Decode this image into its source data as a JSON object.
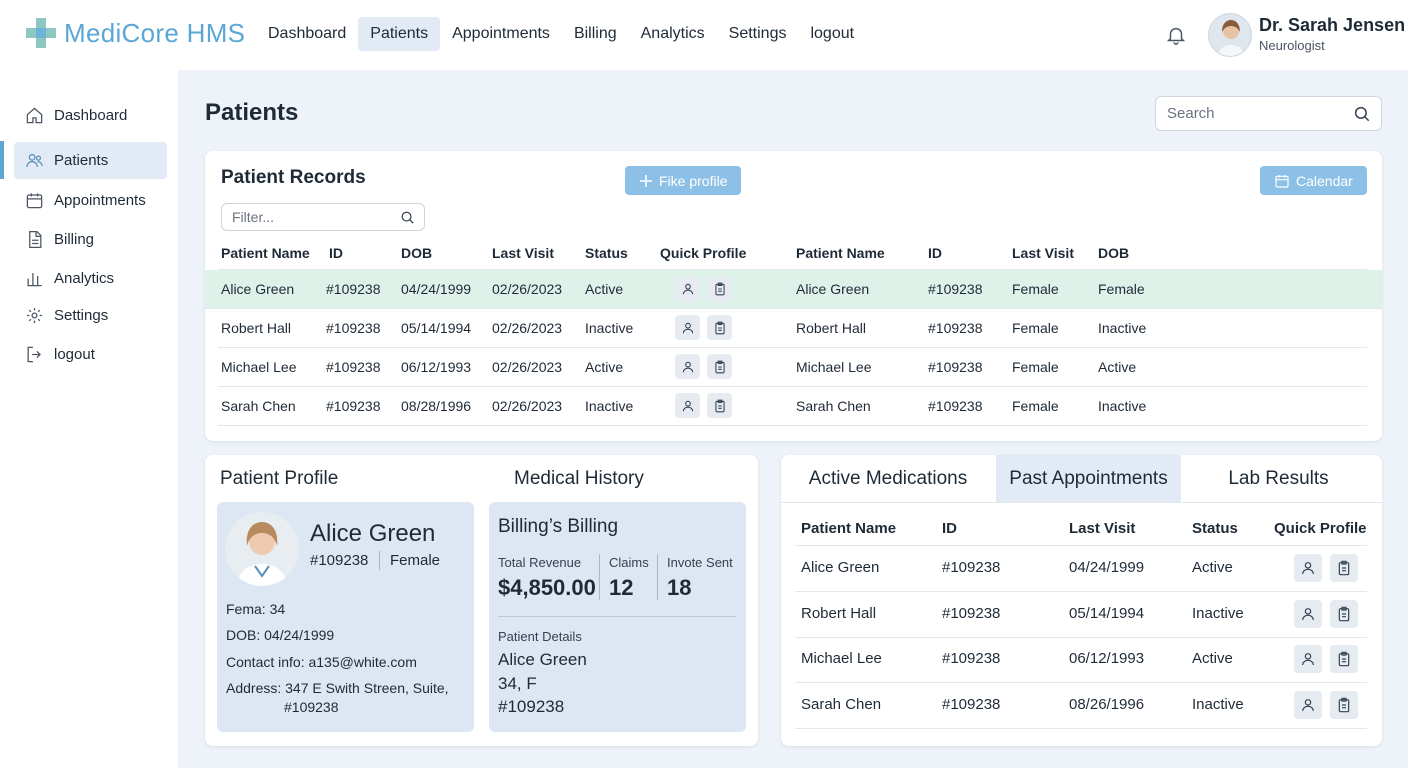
{
  "app": {
    "name": "MediCore HMS",
    "accent": "#5aa7d6",
    "highlight_row": "#dff2ea"
  },
  "topnav": {
    "items": [
      {
        "label": "Dashboard"
      },
      {
        "label": "Patients",
        "active": true
      },
      {
        "label": "Appointments"
      },
      {
        "label": "Billing"
      },
      {
        "label": "Analytics"
      },
      {
        "label": "Settings"
      },
      {
        "label": "logout"
      }
    ]
  },
  "user": {
    "name": "Dr. Sarah Jensen",
    "role": "Neurologist"
  },
  "sidebar": {
    "items": [
      {
        "label": "Dashboard",
        "icon": "home-icon"
      },
      {
        "label": "Patients",
        "icon": "users-icon",
        "active": true
      },
      {
        "label": "Appointments",
        "icon": "calendar-icon"
      },
      {
        "label": "Billing",
        "icon": "document-icon"
      },
      {
        "label": "Analytics",
        "icon": "bar-chart-icon"
      },
      {
        "label": "Settings",
        "icon": "gear-icon"
      },
      {
        "label": "logout",
        "icon": "logout-icon"
      }
    ]
  },
  "page": {
    "title": "Patients"
  },
  "search": {
    "placeholder": "Search"
  },
  "records": {
    "title": "Patient Records",
    "add_button": "Fike profile",
    "calendar_button": "Calendar",
    "filter_placeholder": "Filter...",
    "headers_left": [
      "Patient Name",
      "ID",
      "DOB",
      "Last Visit",
      "Status",
      "Quick Profile"
    ],
    "headers_right": [
      "Patient Name",
      "ID",
      "Last Visit",
      "DOB"
    ],
    "rows": [
      {
        "name": "Alice Green",
        "id": "#109238",
        "dob": "04/24/1999",
        "last_visit": "02/26/2023",
        "status": "Active",
        "r_name": "Alice Green",
        "r_id": "#109238",
        "r_last": "Female",
        "r_dob": "Female"
      },
      {
        "name": "Robert Hall",
        "id": "#109238",
        "dob": "05/14/1994",
        "last_visit": "02/26/2023",
        "status": "Inactive",
        "r_name": "Robert Hall",
        "r_id": "#109238",
        "r_last": "Female",
        "r_dob": "Inactive"
      },
      {
        "name": "Michael Lee",
        "id": "#109238",
        "dob": "06/12/1993",
        "last_visit": "02/26/2023",
        "status": "Active",
        "r_name": "Michael Lee",
        "r_id": "#109238",
        "r_last": "Female",
        "r_dob": "Active"
      },
      {
        "name": "Sarah Chen",
        "id": "#109238",
        "dob": "08/28/1996",
        "last_visit": "02/26/2023",
        "status": "Inactive",
        "r_name": "Sarah Chen",
        "r_id": "#109238",
        "r_last": "Female",
        "r_dob": "Inactive"
      }
    ]
  },
  "profile": {
    "section_title": "Patient Profile",
    "name": "Alice Green",
    "id": "#109238",
    "gender": "Female",
    "age_line": "Fema: 34",
    "dob_line": "DOB: 04/24/1999",
    "contact_line": "Contact info: a135@white.com",
    "address_line1": "Address: 347 E Swith Streen, Suite,",
    "address_line2": "#109238"
  },
  "history": {
    "section_title": "Medical History",
    "billing_title": "Billing’s Billing",
    "revenue_label": "Total Revenue",
    "revenue_value": "$4,850.00",
    "claims_label": "Claims",
    "claims_value": "12",
    "invoice_label": "Invote Sent",
    "invoice_value": "18",
    "details_label": "Patient Details",
    "details_name": "Alice Green",
    "details_age": "34,  F",
    "details_id": "#109238"
  },
  "tabs": {
    "items": [
      {
        "label": "Active Medications"
      },
      {
        "label": "Past Appointments",
        "active": true
      },
      {
        "label": "Lab Results"
      }
    ]
  },
  "appointments": {
    "headers": [
      "Patient Name",
      "ID",
      "Last Visit",
      "Status",
      "Quick Profile"
    ],
    "rows": [
      {
        "name": "Alice Green",
        "id": "#109238",
        "last_visit": "04/24/1999",
        "status": "Active"
      },
      {
        "name": "Robert Hall",
        "id": "#109238",
        "last_visit": "05/14/1994",
        "status": "Inactive"
      },
      {
        "name": "Michael Lee",
        "id": "#109238",
        "last_visit": "06/12/1993",
        "status": "Active"
      },
      {
        "name": "Sarah Chen",
        "id": "#109238",
        "last_visit": "08/26/1996",
        "status": "Inactive"
      }
    ]
  }
}
